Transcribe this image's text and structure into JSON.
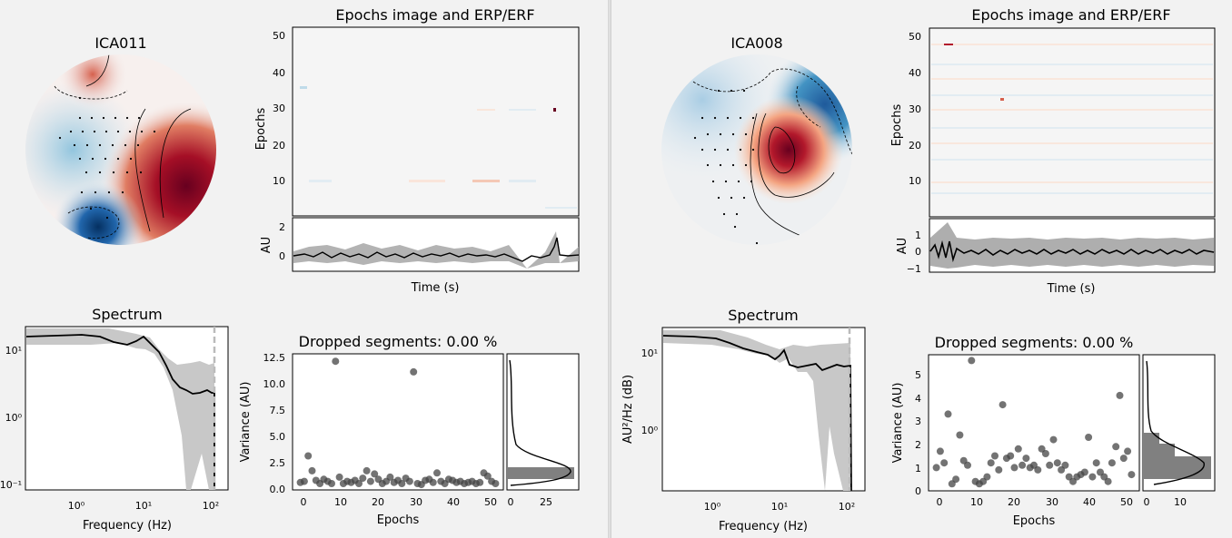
{
  "colors": {
    "accent": "#808080",
    "topo_red": "#8b0e1c",
    "topo_blue": "#1f5a9b",
    "background": "#f2f2f2"
  },
  "panels": [
    {
      "topomap": {
        "title": "ICA011"
      },
      "epochs_image": {
        "title": "Epochs image and ERP/ERF",
        "ylabel": "Epochs",
        "yticks": [
          "10",
          "20",
          "30",
          "40",
          "50"
        ]
      },
      "erp": {
        "ylabel": "AU",
        "xlabel": "Time (s)",
        "yticks": [
          "0",
          "2"
        ]
      },
      "spectrum": {
        "title": "Spectrum",
        "xlabel": "Frequency (Hz)",
        "ylabel": "",
        "yticks": [
          "10⁻¹",
          "10⁰",
          "10¹"
        ],
        "xticks": [
          "10⁰",
          "10¹",
          "10²"
        ]
      },
      "dropped": {
        "title": "Dropped segments: 0.00 %",
        "xlabel": "Epochs",
        "ylabel": "Variance (AU)",
        "yticks": [
          "0.0",
          "2.5",
          "5.0",
          "7.5",
          "10.0",
          "12.5"
        ],
        "xticks": [
          "0",
          "10",
          "20",
          "30",
          "40",
          "50"
        ],
        "hist_xticks": [
          "0",
          "25"
        ]
      }
    },
    {
      "topomap": {
        "title": "ICA008"
      },
      "epochs_image": {
        "title": "Epochs image and ERP/ERF",
        "ylabel": "Epochs",
        "yticks": [
          "10",
          "20",
          "30",
          "40",
          "50"
        ]
      },
      "erp": {
        "ylabel": "AU",
        "xlabel": "Time (s)",
        "yticks": [
          "−1",
          "0",
          "1"
        ]
      },
      "spectrum": {
        "title": "Spectrum",
        "xlabel": "Frequency (Hz)",
        "ylabel": "AU²/Hz (dB)",
        "yticks": [
          "10⁰",
          "10¹"
        ],
        "xticks": [
          "10⁰",
          "10¹",
          "10²"
        ]
      },
      "dropped": {
        "title": "Dropped segments: 0.00 %",
        "xlabel": "Epochs",
        "ylabel": "Variance (AU)",
        "yticks": [
          "0",
          "1",
          "2",
          "3",
          "4",
          "5"
        ],
        "xticks": [
          "0",
          "10",
          "20",
          "30",
          "40",
          "50"
        ],
        "hist_xticks": [
          "0",
          "10"
        ]
      }
    }
  ],
  "chart_data": [
    {
      "type": "scatter",
      "title": "Dropped segments: 0.00 %",
      "xlabel": "Epochs",
      "ylabel": "Variance (AU)",
      "xlim": [
        -2,
        52
      ],
      "ylim": [
        0,
        12.8
      ],
      "x": [
        0,
        1,
        2,
        3,
        4,
        5,
        6,
        7,
        8,
        9,
        10,
        11,
        12,
        13,
        14,
        15,
        16,
        17,
        18,
        19,
        20,
        21,
        22,
        23,
        24,
        25,
        26,
        27,
        28,
        29,
        30,
        31,
        32,
        33,
        34,
        35,
        36,
        37,
        38,
        39,
        40,
        41,
        42,
        43,
        44,
        45,
        46,
        47,
        48,
        49,
        50
      ],
      "y": [
        0.7,
        0.8,
        3.2,
        1.8,
        0.9,
        0.6,
        1.0,
        0.8,
        0.6,
        12.1,
        1.2,
        0.6,
        0.8,
        0.7,
        0.9,
        0.6,
        1.1,
        1.8,
        0.8,
        1.5,
        1.0,
        0.6,
        0.8,
        1.2,
        0.7,
        0.9,
        0.6,
        1.1,
        0.8,
        11.1,
        0.6,
        0.5,
        0.9,
        1.0,
        0.7,
        1.6,
        0.8,
        0.6,
        1.0,
        0.9,
        0.7,
        0.8,
        0.6,
        0.7,
        0.8,
        0.6,
        0.7,
        1.6,
        1.3,
        0.8,
        0.6
      ]
    },
    {
      "type": "scatter",
      "title": "Dropped segments: 0.00 %",
      "xlabel": "Epochs",
      "ylabel": "Variance (AU)",
      "xlim": [
        -2,
        52
      ],
      "ylim": [
        0,
        5.85
      ],
      "x": [
        0,
        1,
        2,
        3,
        4,
        5,
        6,
        7,
        8,
        9,
        10,
        11,
        12,
        13,
        14,
        15,
        16,
        17,
        18,
        19,
        20,
        21,
        22,
        23,
        24,
        25,
        26,
        27,
        28,
        29,
        30,
        31,
        32,
        33,
        34,
        35,
        36,
        37,
        38,
        39,
        40,
        41,
        42,
        43,
        44,
        45,
        46,
        47,
        48,
        49,
        50
      ],
      "y": [
        1.0,
        1.7,
        1.2,
        3.3,
        0.3,
        0.5,
        2.4,
        1.3,
        1.1,
        5.6,
        0.4,
        0.3,
        0.4,
        0.6,
        1.2,
        1.5,
        0.9,
        3.7,
        1.4,
        1.5,
        1.0,
        1.8,
        1.1,
        1.4,
        1.0,
        1.1,
        0.9,
        1.8,
        1.6,
        1.1,
        2.2,
        1.2,
        0.9,
        1.1,
        0.6,
        0.4,
        0.6,
        0.7,
        0.8,
        2.3,
        0.6,
        1.2,
        0.8,
        0.6,
        0.4,
        1.2,
        1.9,
        4.1,
        1.4,
        1.7,
        0.7
      ]
    }
  ]
}
